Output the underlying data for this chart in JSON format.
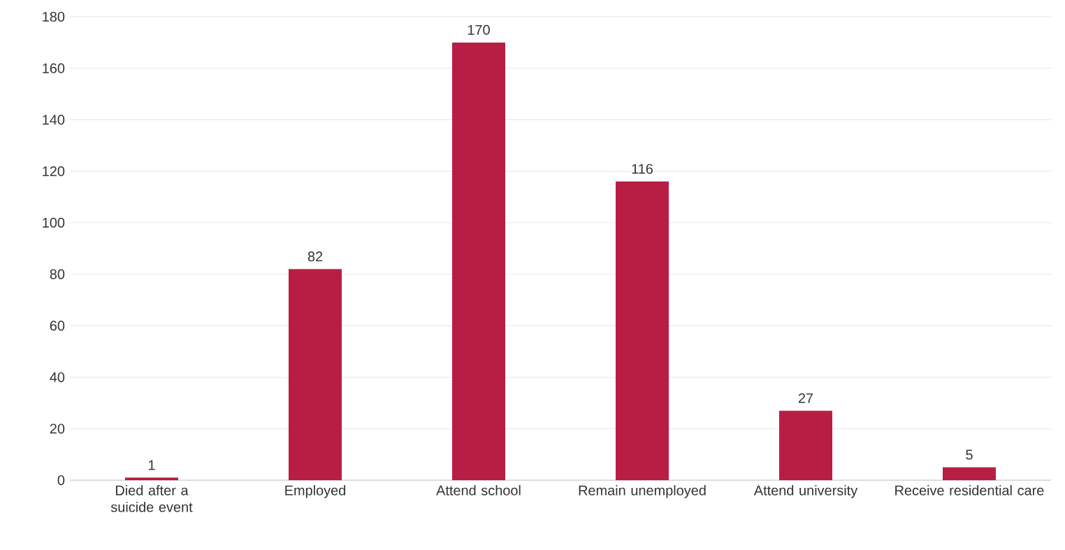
{
  "chart_data": {
    "type": "bar",
    "categories": [
      "Died after a suicide event",
      "Employed",
      "Attend school",
      "Remain unemployed",
      "Attend university",
      "Receive residential care"
    ],
    "values": [
      1,
      82,
      170,
      116,
      27,
      5
    ],
    "color": "#b81e44",
    "ylim": [
      0,
      180
    ],
    "yticks": [
      0,
      20,
      40,
      60,
      80,
      100,
      120,
      140,
      160,
      180
    ],
    "grid": "y",
    "data_labels": true
  }
}
